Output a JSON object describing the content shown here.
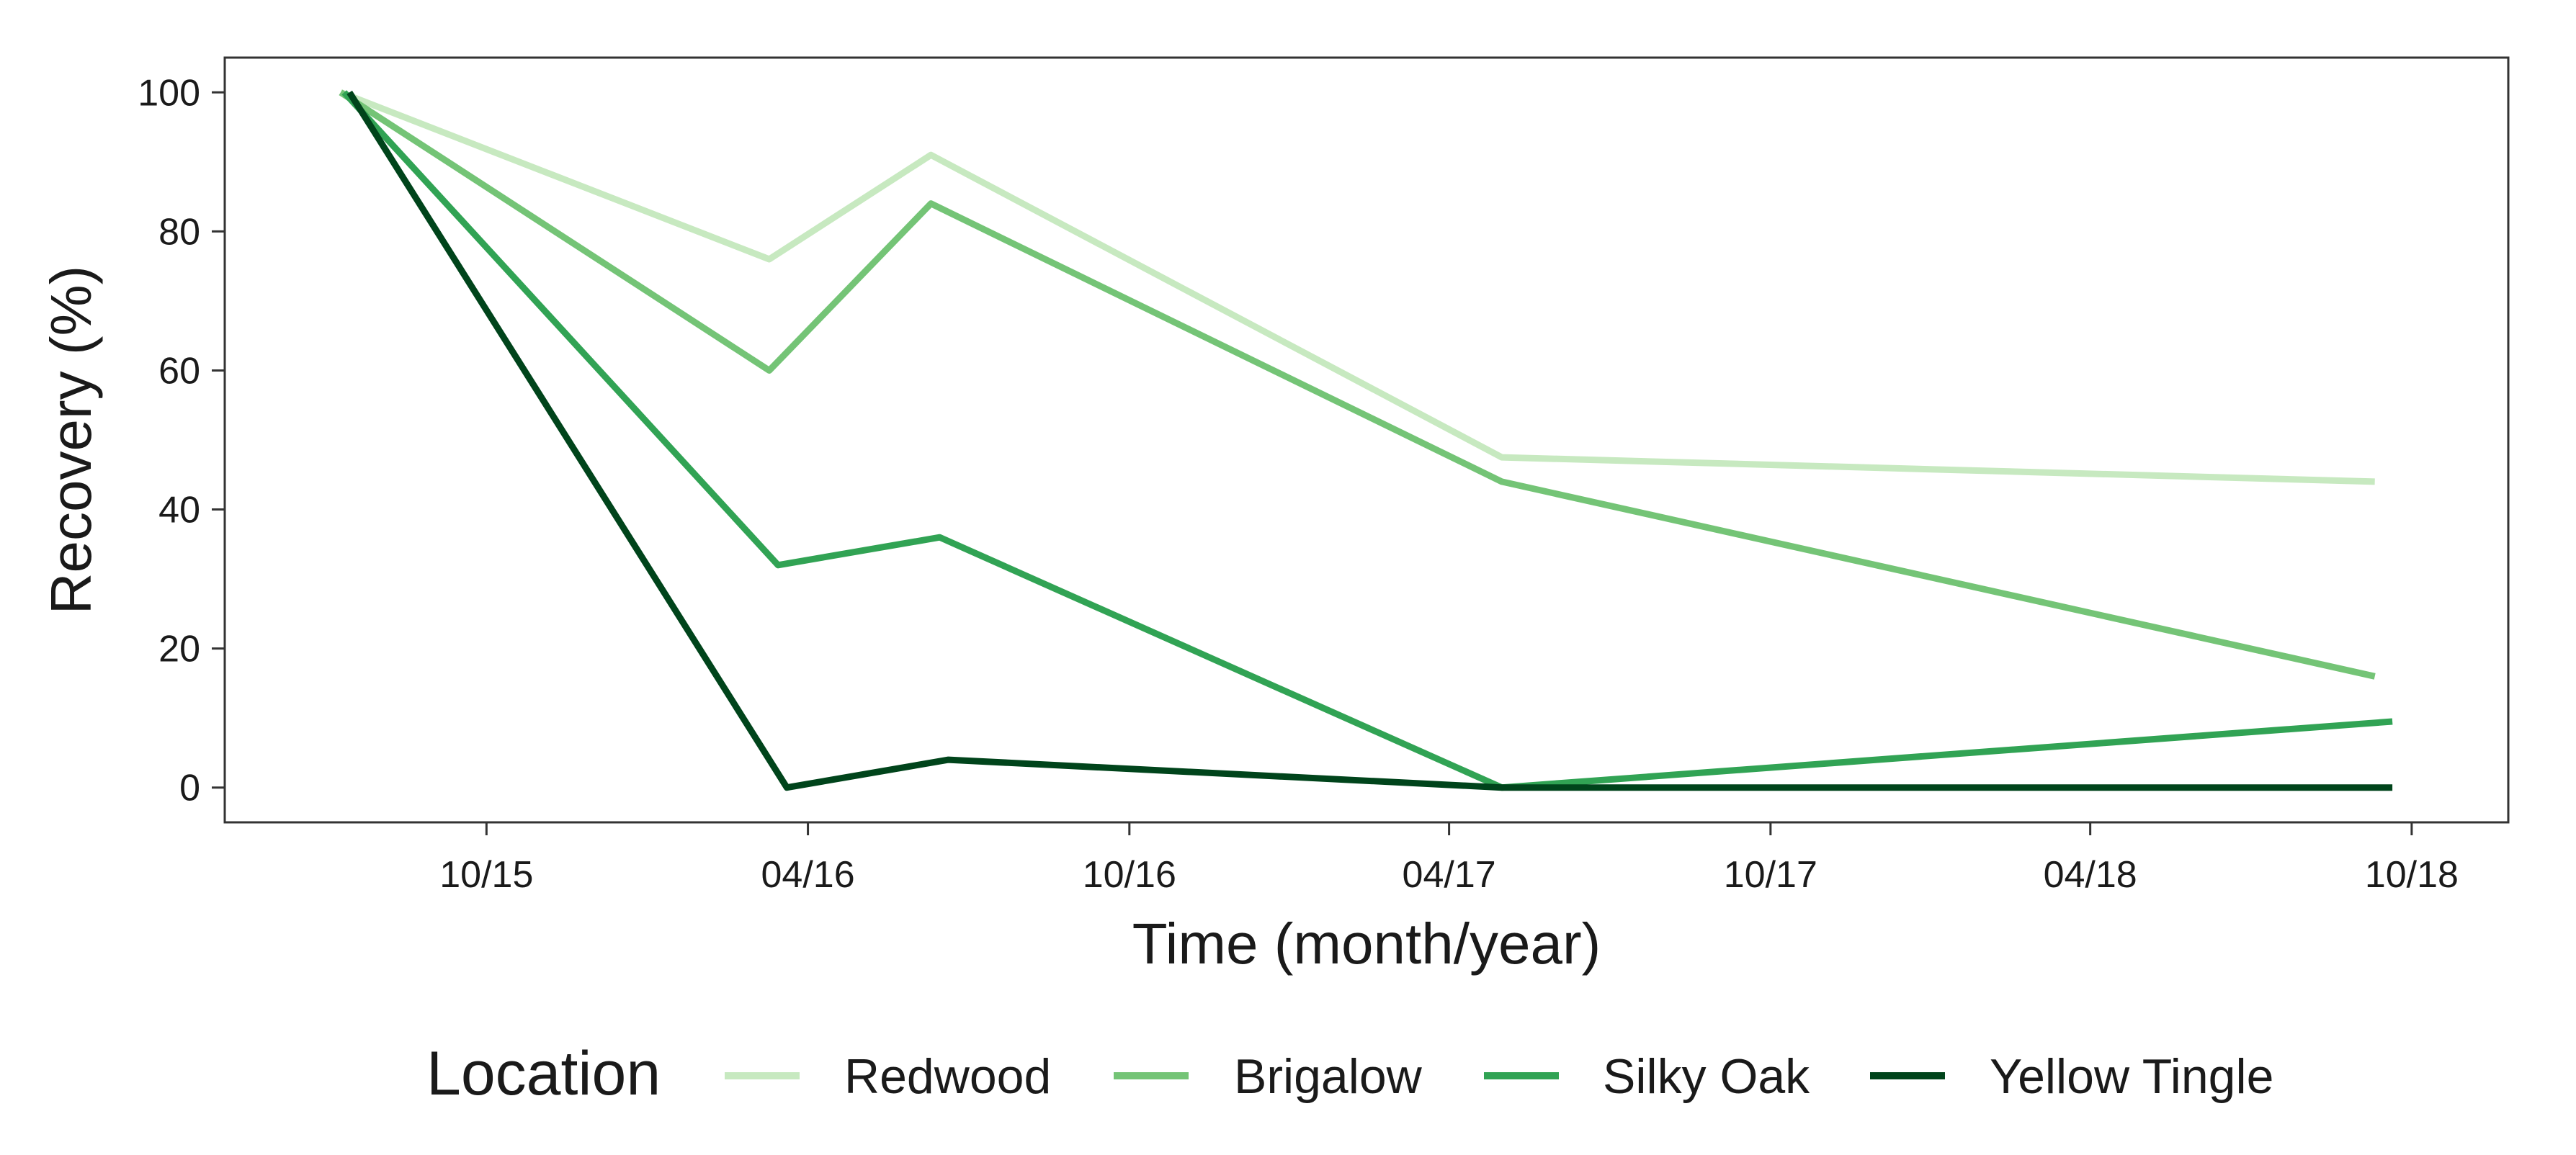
{
  "chart_data": {
    "type": "line",
    "xlabel": "Time (month/year)",
    "ylabel": "Recovery (%)",
    "xlim": [
      "2015-05-05",
      "2018-11-25"
    ],
    "ylim": [
      -5,
      105
    ],
    "x_ticks": [
      "2015-10-01",
      "2016-04-01",
      "2016-10-01",
      "2017-04-01",
      "2017-10-01",
      "2018-04-01",
      "2018-10-01"
    ],
    "x_tick_labels": [
      "10/15",
      "04/16",
      "10/16",
      "04/17",
      "10/17",
      "04/18",
      "10/18"
    ],
    "y_ticks": [
      0,
      20,
      40,
      60,
      80,
      100
    ],
    "y_tick_labels": [
      "0",
      "20",
      "40",
      "60",
      "80",
      "100"
    ],
    "grid": false,
    "legend": {
      "title": "Location",
      "position": "bottom"
    },
    "series": [
      {
        "name": "Redwood",
        "color": "#c7e9c0",
        "points": [
          {
            "x": "2015-07-10",
            "y": 100
          },
          {
            "x": "2016-03-10",
            "y": 76
          },
          {
            "x": "2016-06-10",
            "y": 91
          },
          {
            "x": "2017-05-01",
            "y": 47.5
          },
          {
            "x": "2018-09-10",
            "y": 44
          }
        ]
      },
      {
        "name": "Brigalow",
        "color": "#74c476",
        "points": [
          {
            "x": "2015-07-10",
            "y": 100
          },
          {
            "x": "2016-03-10",
            "y": 60
          },
          {
            "x": "2016-06-10",
            "y": 84
          },
          {
            "x": "2017-05-01",
            "y": 44
          },
          {
            "x": "2018-09-10",
            "y": 16
          }
        ]
      },
      {
        "name": "Silky Oak",
        "color": "#31a354",
        "points": [
          {
            "x": "2015-07-12",
            "y": 100
          },
          {
            "x": "2016-03-15",
            "y": 32
          },
          {
            "x": "2016-06-15",
            "y": 36
          },
          {
            "x": "2017-05-01",
            "y": 0
          },
          {
            "x": "2018-09-20",
            "y": 9.5
          }
        ]
      },
      {
        "name": "Yellow Tingle",
        "color": "#00441b",
        "points": [
          {
            "x": "2015-07-15",
            "y": 100
          },
          {
            "x": "2016-03-20",
            "y": 0
          },
          {
            "x": "2016-06-20",
            "y": 4
          },
          {
            "x": "2017-05-01",
            "y": 0
          },
          {
            "x": "2018-09-20",
            "y": 0
          }
        ]
      }
    ]
  }
}
